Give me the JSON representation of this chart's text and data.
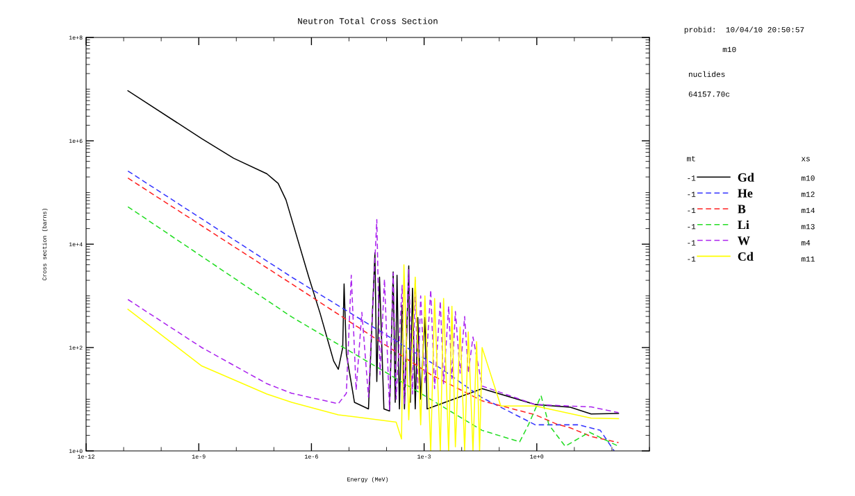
{
  "chart_data": {
    "type": "line",
    "title": "Neutron Total Cross Section",
    "xlabel": "Energy (MeV)",
    "ylabel": "Cross section (barns)",
    "log": "xy",
    "xlim": [
      1e-12,
      1000
    ],
    "ylim": [
      1,
      100000000
    ],
    "xticks": [
      {
        "value": 1e-12,
        "label": "1e-12"
      },
      {
        "value": 1e-09,
        "label": "1e-9"
      },
      {
        "value": 1e-06,
        "label": "1e-6"
      },
      {
        "value": 0.001,
        "label": "1e-3"
      },
      {
        "value": 1,
        "label": "1e+0"
      }
    ],
    "yticks": [
      {
        "value": 1,
        "label": "1e+0"
      },
      {
        "value": 100,
        "label": "1e+2"
      },
      {
        "value": 10000,
        "label": "1e+4"
      },
      {
        "value": 1000000,
        "label": "1e+6"
      },
      {
        "value": 100000000,
        "label": "1e+8"
      }
    ],
    "grid": false,
    "legend": "right",
    "annotations": [
      "probid:  10/04/10 20:50:57",
      "m10",
      "nuclides",
      "64157.70c",
      "mt",
      "xs",
      "-1",
      "m10",
      "-1",
      "m12",
      "-1",
      "m14",
      "-1",
      "m13",
      "-1",
      "m4",
      "-1",
      "m11"
    ],
    "series": [
      {
        "name": "Gd",
        "color": "#000000",
        "line_style": "solid",
        "x": [
          1.3e-11,
          1.2e-09,
          8.5e-09,
          6.5e-08,
          1.3e-07,
          2.1e-07,
          8.5e-07,
          1.7e-06,
          3.9e-06,
          5.2e-06,
          6.8e-06,
          7.4e-06,
          8.5e-06,
          1.4e-05,
          3.3e-05,
          4.9e-05,
          5.5e-05,
          6.5e-05,
          8.5e-05,
          0.00012,
          0.00015,
          0.00017,
          0.00019,
          0.00022,
          0.00026,
          0.0003,
          0.00039,
          0.00043,
          0.00049,
          0.00058,
          0.00068,
          0.00081,
          0.00105,
          0.0012,
          0.035,
          0.91,
          7.8,
          28,
          150
        ],
        "values": [
          9300000.0,
          1100000.0,
          460000.0,
          230000.0,
          150000.0,
          72000.0,
          2300,
          460,
          55,
          38,
          100,
          1700,
          76,
          8.7,
          6.5,
          6800,
          22,
          2300,
          6.5,
          5.9,
          2900,
          8.7,
          2500,
          6.5,
          660,
          6.5,
          3800,
          8.7,
          1400,
          6.5,
          380,
          10,
          380,
          6.5,
          16,
          7.9,
          7.0,
          5.2,
          5.3
        ]
      },
      {
        "name": "He",
        "color": "#3333ff",
        "line_style": "dashed",
        "x": [
          1.3e-11,
          3e-07,
          0.0027,
          0.035,
          0.91,
          13,
          49,
          115
        ],
        "values": [
          260000.0,
          2300,
          40,
          10.7,
          3.2,
          3.2,
          2.5,
          1.0
        ]
      },
      {
        "name": "B",
        "color": "#ff2020",
        "line_style": "dashed",
        "x": [
          1.3e-11,
          3e-07,
          0.0015,
          0.035,
          0.91,
          3.4,
          7.8,
          28,
          150
        ],
        "values": [
          190000.0,
          1700,
          30,
          9.3,
          5.0,
          3.3,
          2.8,
          1.9,
          1.45
        ]
      },
      {
        "name": "Li",
        "color": "#22dd22",
        "line_style": "dashed",
        "x": [
          1.3e-11,
          3e-07,
          0.00012,
          0.035,
          0.35,
          0.6,
          1.3,
          2.1,
          5.7,
          25,
          150
        ],
        "values": [
          53000.0,
          390,
          30,
          2.5,
          1.5,
          3.2,
          11.7,
          3.2,
          1.23,
          2.3,
          1.23
        ]
      },
      {
        "name": "W",
        "color": "#aa22ee",
        "line_style": "dashed",
        "x": [
          1.3e-11,
          1.2e-09,
          6.5e-08,
          3e-07,
          5.2e-06,
          8.5e-06,
          1.15e-05,
          1.55e-05,
          2.2e-05,
          3.3e-05,
          5.5e-05,
          6.7e-05,
          8.8e-05,
          0.00012,
          0.00015,
          0.00018,
          0.00026,
          0.0003,
          0.00039,
          0.00049,
          0.00058,
          0.00068,
          0.00081,
          0.00105,
          0.0015,
          0.0019,
          0.0027,
          0.0033,
          0.0045,
          0.0055,
          0.0068,
          0.0091,
          0.012,
          0.015,
          0.02,
          0.035,
          0.91,
          28,
          150
        ],
        "values": [
          850,
          100,
          20,
          13,
          8.2,
          13,
          2500,
          15,
          480,
          11,
          30000,
          30,
          2100,
          6.3,
          2800,
          10,
          1600,
          8,
          3200,
          12.6,
          2000,
          16,
          1000,
          20,
          1300,
          16,
          790,
          20,
          630,
          25,
          500,
          32,
          400,
          32,
          160,
          18,
          7.9,
          7.1,
          5.5
        ]
      },
      {
        "name": "Cd",
        "color": "#ffff00",
        "line_style": "solid",
        "x": [
          1.3e-11,
          1.2e-09,
          6.5e-08,
          3e-07,
          5.2e-06,
          0.00018,
          0.00025,
          0.00029,
          0.00039,
          0.00058,
          0.00081,
          0.00105,
          0.0015,
          0.0019,
          0.0027,
          0.0033,
          0.0045,
          0.0055,
          0.0068,
          0.0091,
          0.012,
          0.015,
          0.02,
          0.025,
          0.03,
          0.035,
          0.11,
          0.91,
          28,
          150
        ],
        "values": [
          550,
          44,
          12.6,
          8.7,
          5.0,
          3.6,
          1.7,
          4000,
          4,
          2300,
          3.2,
          1000,
          1.0,
          890,
          1.0,
          890,
          1.0,
          630,
          1.2,
          250,
          1.0,
          200,
          1.0,
          130,
          1.0,
          100,
          7.4,
          7.4,
          4.3,
          4.2
        ]
      }
    ]
  }
}
